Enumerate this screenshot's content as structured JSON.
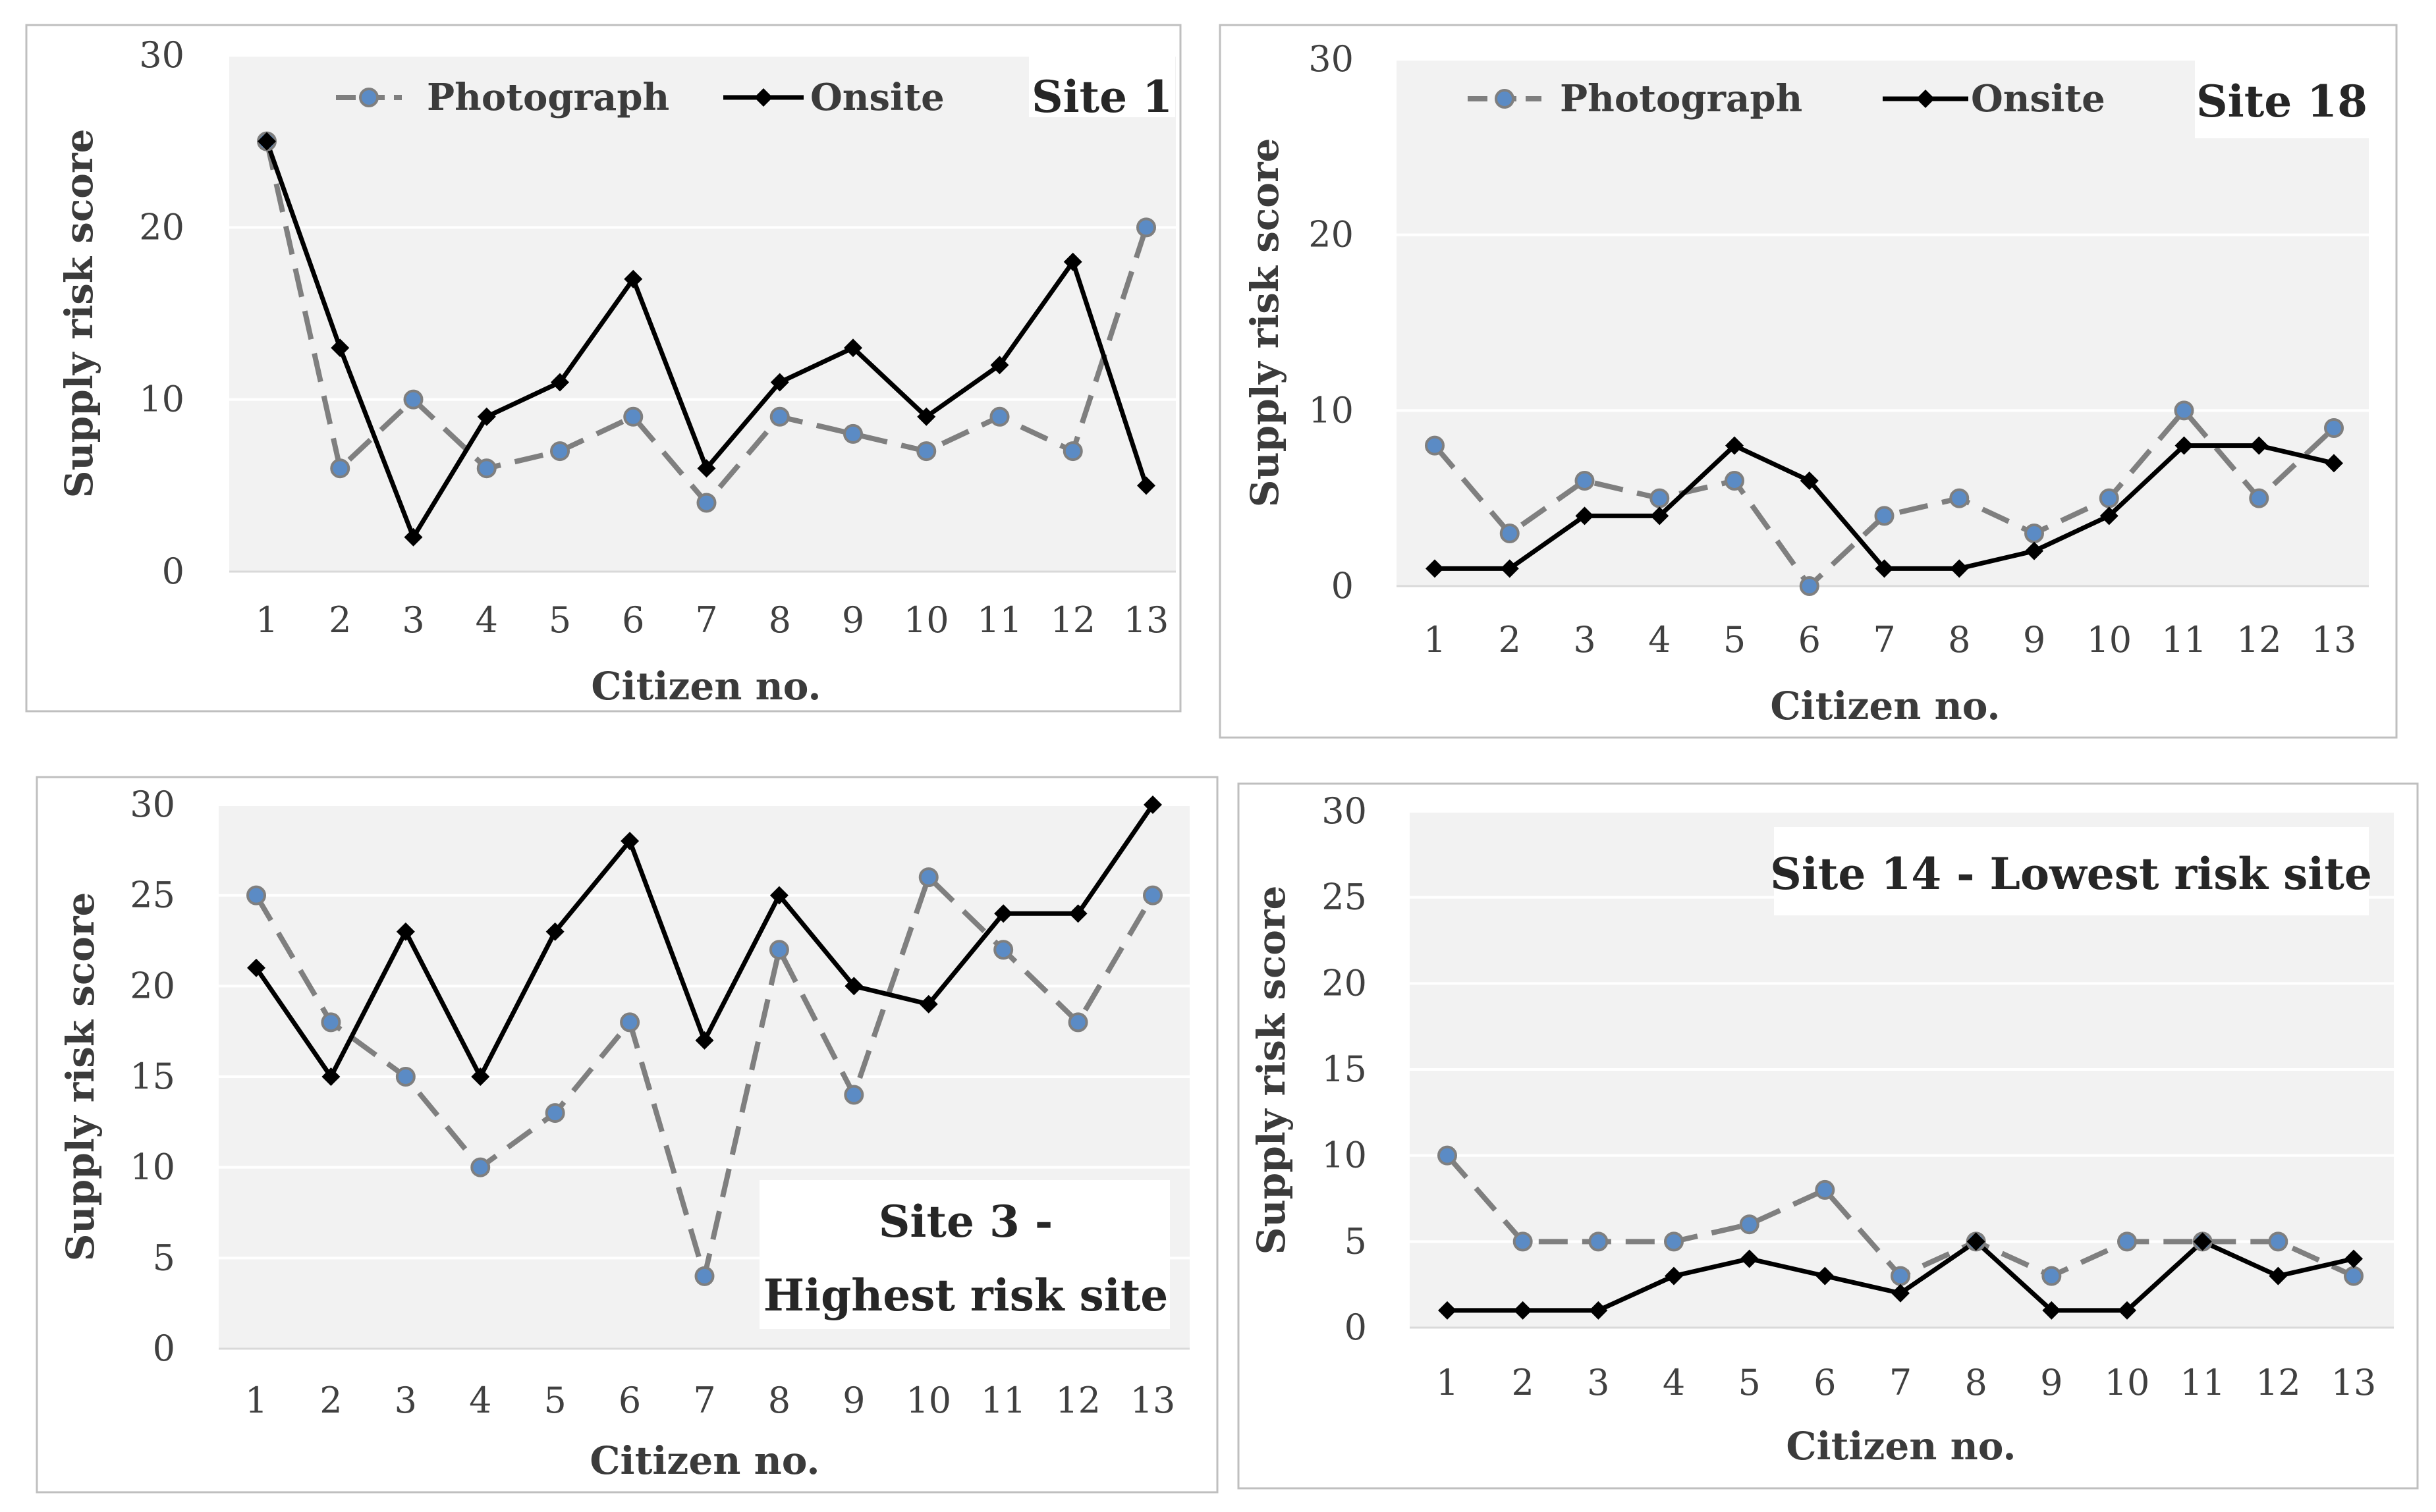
{
  "colors": {
    "photograph_line": "#7f7f7f",
    "photograph_marker_fill": "#5b8bc5",
    "onsite_line": "#000000",
    "plot_background": "#f2f2f2",
    "gridline": "#ffffff",
    "panel_border": "#bfbfbf"
  },
  "chart_data": [
    {
      "type": "line",
      "title": "Site 1",
      "title_lines": [
        "Site 1"
      ],
      "legend_position": "top",
      "xlabel": "Citizen no.",
      "ylabel": "Supply risk score",
      "ylim": [
        0,
        30
      ],
      "yticks": [
        0,
        10,
        20,
        30
      ],
      "categories": [
        "1",
        "2",
        "3",
        "4",
        "5",
        "6",
        "7",
        "8",
        "9",
        "10",
        "11",
        "12",
        "13"
      ],
      "series": [
        {
          "name": "Photograph",
          "values": [
            25,
            6,
            10,
            6,
            7,
            9,
            4,
            9,
            8,
            7,
            9,
            7,
            20
          ]
        },
        {
          "name": "Onsite",
          "values": [
            25,
            13,
            2,
            9,
            11,
            17,
            6,
            11,
            13,
            9,
            12,
            18,
            5
          ]
        }
      ]
    },
    {
      "type": "line",
      "title": "Site 18",
      "title_lines": [
        "Site 18"
      ],
      "legend_position": "top",
      "xlabel": "Citizen no.",
      "ylabel": "Supply risk score",
      "ylim": [
        0,
        30
      ],
      "yticks": [
        0,
        10,
        20,
        30
      ],
      "categories": [
        "1",
        "2",
        "3",
        "4",
        "5",
        "6",
        "7",
        "8",
        "9",
        "10",
        "11",
        "12",
        "13"
      ],
      "series": [
        {
          "name": "Photograph",
          "values": [
            8,
            3,
            6,
            5,
            6,
            0,
            4,
            5,
            3,
            5,
            10,
            5,
            9
          ]
        },
        {
          "name": "Onsite",
          "values": [
            1,
            1,
            4,
            4,
            8,
            6,
            1,
            1,
            2,
            4,
            8,
            8,
            7
          ]
        }
      ]
    },
    {
      "type": "line",
      "title": "Site 3 - Highest risk site",
      "title_lines": [
        "Site 3 -",
        "Highest risk site"
      ],
      "legend_position": "none",
      "xlabel": "Citizen  no.",
      "ylabel": "Supply risk score",
      "ylim": [
        0,
        30
      ],
      "yticks": [
        0,
        5,
        10,
        15,
        20,
        25,
        30
      ],
      "categories": [
        "1",
        "2",
        "3",
        "4",
        "5",
        "6",
        "7",
        "8",
        "9",
        "10",
        "11",
        "12",
        "13"
      ],
      "series": [
        {
          "name": "Photograph",
          "values": [
            25,
            18,
            15,
            10,
            13,
            18,
            4,
            22,
            14,
            26,
            22,
            18,
            25
          ]
        },
        {
          "name": "Onsite",
          "values": [
            21,
            15,
            23,
            15,
            23,
            28,
            17,
            25,
            20,
            19,
            24,
            24,
            30
          ]
        }
      ]
    },
    {
      "type": "line",
      "title": "Site 14 - Lowest risk site",
      "title_lines": [
        "Site 14 - Lowest risk site"
      ],
      "legend_position": "none",
      "xlabel": "Citizen no.",
      "ylabel": "Supply risk score",
      "ylim": [
        0,
        30
      ],
      "yticks": [
        0,
        5,
        10,
        15,
        20,
        25,
        30
      ],
      "categories": [
        "1",
        "2",
        "3",
        "4",
        "5",
        "6",
        "7",
        "8",
        "9",
        "10",
        "11",
        "12",
        "13"
      ],
      "series": [
        {
          "name": "Photograph",
          "values": [
            10,
            5,
            5,
            5,
            6,
            8,
            3,
            5,
            3,
            5,
            5,
            5,
            3
          ]
        },
        {
          "name": "Onsite",
          "values": [
            1,
            1,
            1,
            3,
            4,
            3,
            2,
            5,
            1,
            1,
            5,
            3,
            4
          ]
        }
      ]
    }
  ]
}
